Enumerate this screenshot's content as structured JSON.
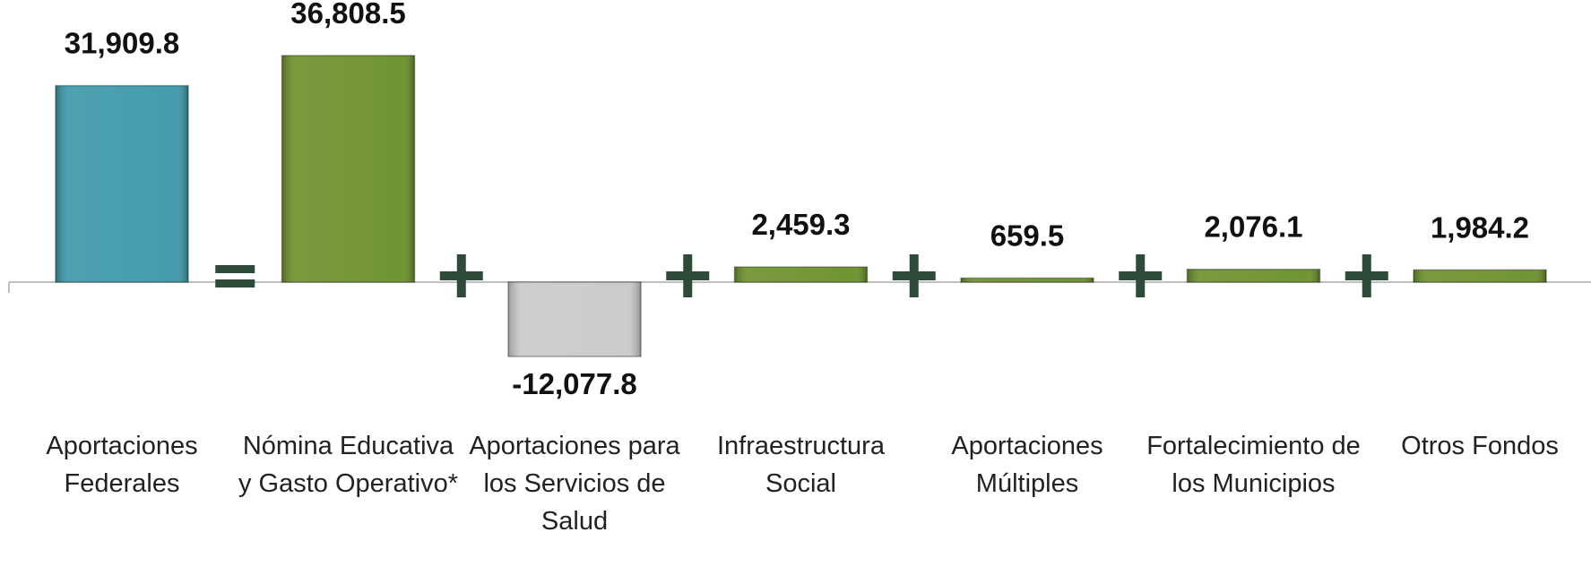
{
  "chart_data": {
    "type": "bar",
    "categories": [
      "Aportaciones Federales",
      "Nómina Educativa y Gasto Operativo*",
      "Aportaciones para los Servicios de Salud",
      "Infraestructura Social",
      "Aportaciones Múltiples",
      "Fortalecimiento de los Municipios",
      "Otros Fondos"
    ],
    "values": [
      31909.8,
      36808.5,
      -12077.8,
      2459.3,
      659.5,
      2076.1,
      1984.2
    ],
    "value_labels": [
      "31,909.8",
      "36,808.5",
      "-12,077.8",
      "2,459.3",
      "659.5",
      "2,076.1",
      "1,984.2"
    ],
    "colors": [
      "#3a97a9",
      "#6a8f28",
      "#c9c9c9",
      "#6a8f28",
      "#6a8f28",
      "#6a8f28",
      "#6a8f28"
    ]
  }
}
